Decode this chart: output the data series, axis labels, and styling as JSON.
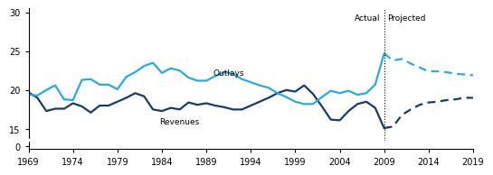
{
  "revenues_actual_years": [
    1969,
    1970,
    1971,
    1972,
    1973,
    1974,
    1975,
    1976,
    1977,
    1978,
    1979,
    1980,
    1981,
    1982,
    1983,
    1984,
    1985,
    1986,
    1987,
    1988,
    1989,
    1990,
    1991,
    1992,
    1993,
    1994,
    1995,
    1996,
    1997,
    1998,
    1999,
    2000,
    2001,
    2002,
    2003,
    2004,
    2005,
    2006,
    2007,
    2008,
    2009
  ],
  "revenues_actual_values": [
    19.7,
    19.0,
    17.3,
    17.6,
    17.6,
    18.3,
    17.9,
    17.1,
    18.0,
    18.0,
    18.5,
    19.0,
    19.6,
    19.2,
    17.5,
    17.3,
    17.7,
    17.5,
    18.4,
    18.1,
    18.3,
    18.0,
    17.8,
    17.5,
    17.5,
    18.0,
    18.5,
    19.0,
    19.6,
    20.0,
    19.8,
    20.6,
    19.5,
    17.9,
    16.2,
    16.1,
    17.3,
    18.2,
    18.5,
    17.7,
    15.1
  ],
  "revenues_projected_years": [
    2009,
    2010,
    2011,
    2012,
    2013,
    2014,
    2015,
    2016,
    2017,
    2018,
    2019
  ],
  "revenues_projected_values": [
    15.1,
    15.3,
    16.8,
    17.5,
    18.1,
    18.4,
    18.5,
    18.7,
    18.8,
    19.0,
    19.0
  ],
  "outlays_actual_years": [
    1969,
    1970,
    1971,
    1972,
    1973,
    1974,
    1975,
    1976,
    1977,
    1978,
    1979,
    1980,
    1981,
    1982,
    1983,
    1984,
    1985,
    1986,
    1987,
    1988,
    1989,
    1990,
    1991,
    1992,
    1993,
    1994,
    1995,
    1996,
    1997,
    1998,
    1999,
    2000,
    2001,
    2002,
    2003,
    2004,
    2005,
    2006,
    2007,
    2008,
    2009
  ],
  "outlays_actual_values": [
    19.4,
    19.3,
    20.0,
    20.6,
    18.8,
    18.7,
    21.3,
    21.4,
    20.7,
    20.7,
    20.1,
    21.7,
    22.3,
    23.1,
    23.5,
    22.2,
    22.8,
    22.5,
    21.6,
    21.2,
    21.2,
    21.8,
    22.3,
    22.1,
    21.4,
    21.0,
    20.6,
    20.3,
    19.6,
    19.1,
    18.5,
    18.2,
    18.2,
    19.1,
    19.9,
    19.6,
    19.9,
    19.4,
    19.6,
    20.7,
    24.7
  ],
  "outlays_projected_years": [
    2009,
    2010,
    2011,
    2012,
    2013,
    2014,
    2015,
    2016,
    2017,
    2018,
    2019
  ],
  "outlays_projected_values": [
    24.7,
    23.8,
    24.0,
    23.4,
    22.9,
    22.4,
    22.4,
    22.3,
    22.1,
    22.0,
    21.9
  ],
  "revenues_color": "#1a3a6b",
  "outlays_color": "#29aae1",
  "dotted_line_year": 2009,
  "main_ylim": [
    13.5,
    30.5
  ],
  "zero_ylim": [
    -0.3,
    0.8
  ],
  "yticks_main": [
    15,
    20,
    25,
    30
  ],
  "ytick_zero": [
    0
  ],
  "xticks": [
    1969,
    1974,
    1979,
    1984,
    1989,
    1994,
    1999,
    2004,
    2009,
    2014,
    2019
  ],
  "actual_label": "Actual",
  "projected_label": "Projected",
  "revenues_label": "Revenues",
  "outlays_label": "Outlays",
  "background_color": "#ffffff",
  "linewidth": 1.6
}
